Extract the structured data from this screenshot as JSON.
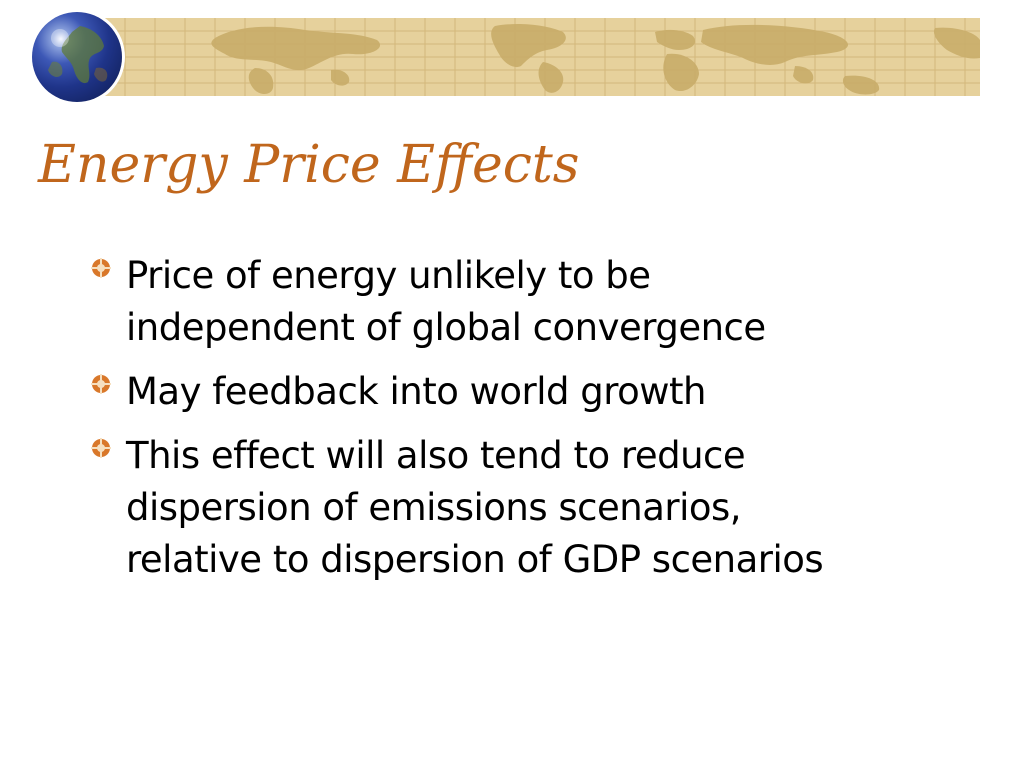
{
  "slide": {
    "title": "Energy Price Effects",
    "bullets": [
      {
        "text": "Price of energy unlikely to be\nindependent of global convergence",
        "icon": "orange-gear-bullet-icon"
      },
      {
        "text": "May feedback into world growth",
        "icon": "orange-gear-bullet-icon"
      },
      {
        "text": "This effect will also tend to reduce\ndispersion of emissions scenarios,\nrelative to dispersion of GDP scenarios",
        "icon": "orange-gear-bullet-icon"
      }
    ]
  },
  "theme": {
    "title_color": "#c0661c",
    "banner_color": "#e6d19c",
    "map_color": "#c9ad6a",
    "bullet_color": "#d9782a",
    "text_color": "#000000"
  },
  "decor": {
    "banner": "world-map-banner",
    "globe": "globe-icon"
  }
}
